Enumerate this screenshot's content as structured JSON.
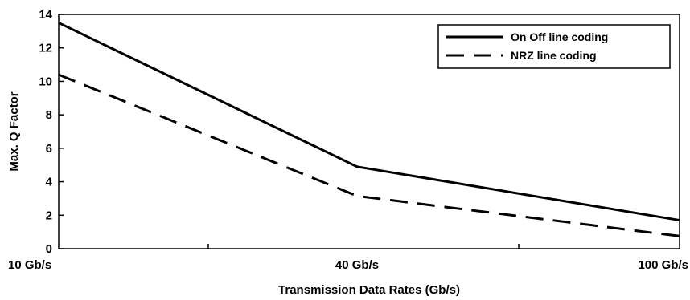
{
  "chart_data": {
    "type": "line",
    "title": "",
    "xlabel": "Transmission Data Rates (Gb/s)",
    "ylabel": "Max. Q Factor",
    "categories": [
      "10 Gb/s",
      "40 Gb/s",
      "100 Gb/s"
    ],
    "ylim": [
      0,
      14
    ],
    "yticks": [
      0,
      2,
      4,
      6,
      8,
      10,
      12,
      14
    ],
    "grid": false,
    "legend_position": "top-right",
    "series": [
      {
        "name": "On Off line coding",
        "values": [
          13.5,
          4.9,
          1.7
        ],
        "style": "solid",
        "color": "#000000"
      },
      {
        "name": "NRZ line coding",
        "values": [
          10.4,
          3.15,
          0.75
        ],
        "style": "dashed",
        "color": "#000000"
      }
    ]
  }
}
